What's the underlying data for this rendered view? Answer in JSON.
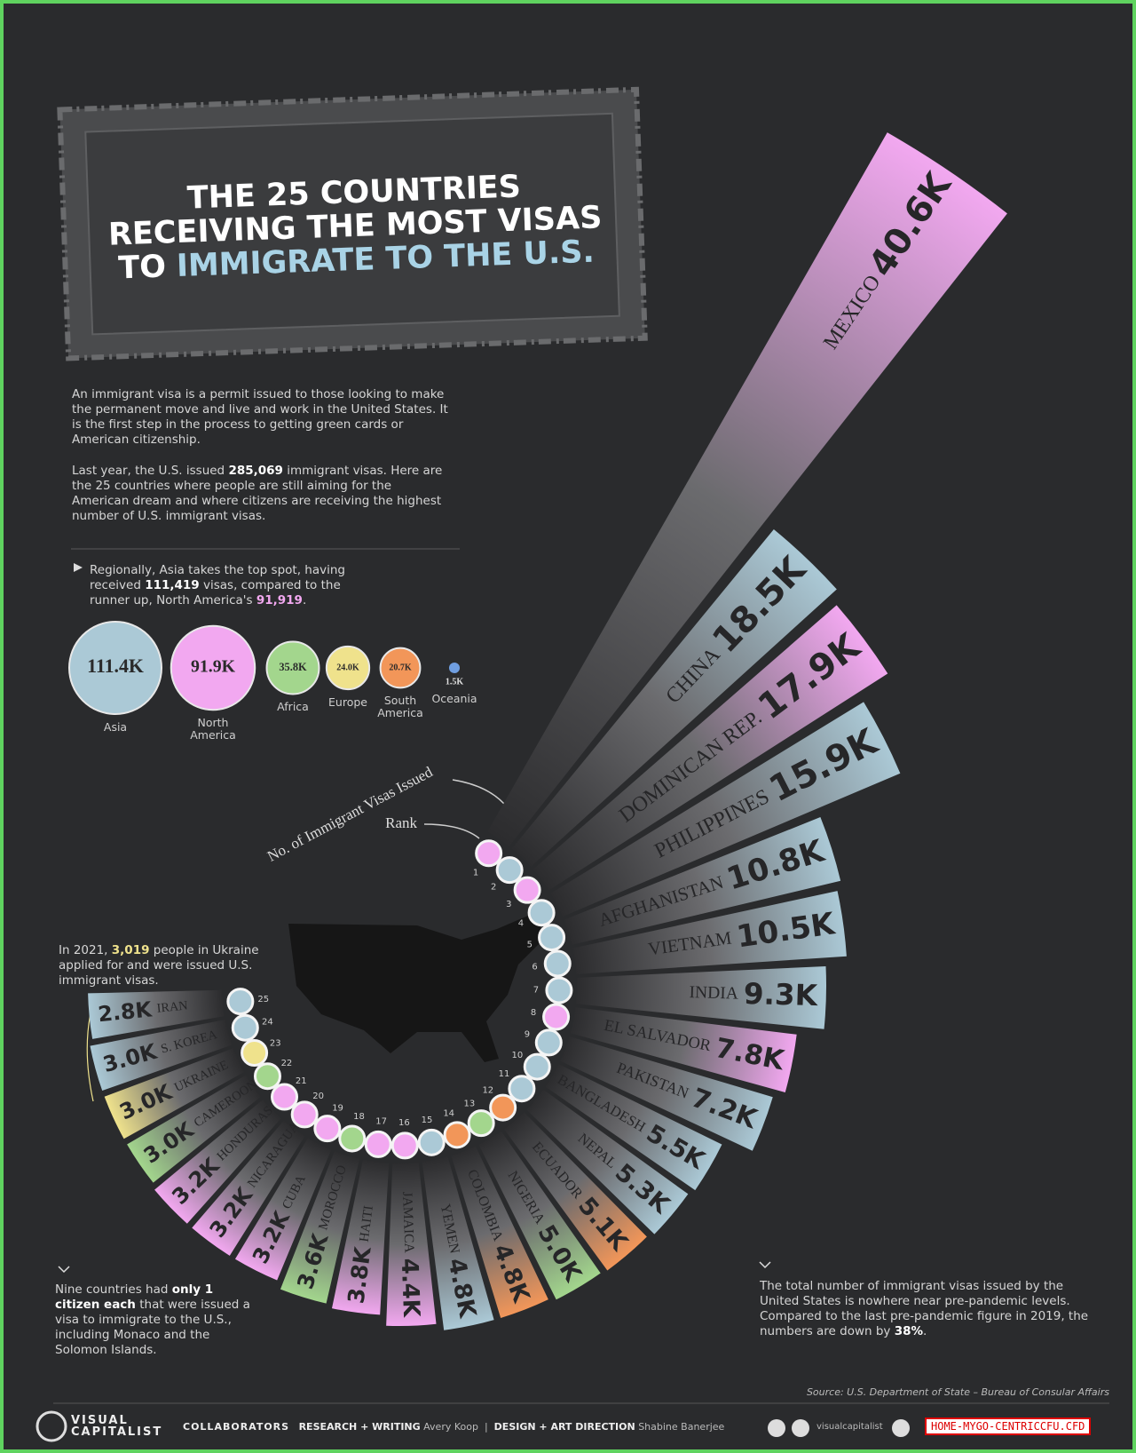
{
  "header": {
    "title_lines": [
      "THE 25 COUNTRIES",
      "RECEIVING THE MOST VISAS",
      "TO"
    ],
    "title_highlight": "IMMIGRATE TO THE U.S."
  },
  "intro": {
    "p1": "An immigrant visa is a permit issued to those looking to make the permanent move and live and work in the United States. It is the first step in the process to getting green cards or American citizenship.",
    "p2": [
      "Last year, the U.S. issued ",
      "285,069",
      " immigrant visas. Here are the 25 countries where people are still aiming for the American dream and where citizens are receiving the highest number of U.S. immigrant visas."
    ]
  },
  "regional_note": [
    "Regionally, Asia takes the top spot, having received ",
    "111,419",
    " visas, compared to the runner up, North America's ",
    "91,919",
    "."
  ],
  "annotations": {
    "ukraine": [
      "In 2021, ",
      "3,019",
      " people in Ukraine applied for and were issued U.S. immigrant visas."
    ],
    "nine_countries": [
      "Nine countries had ",
      "only 1 citizen each",
      " that were issued a visa to immigrate to the U.S., including Monaco and the Solomon Islands."
    ],
    "pandemic": [
      "The total number of immigrant visas issued by the United States is nowhere near pre-pandemic levels. Compared to the last pre-pandemic figure in 2019, the numbers are down by ",
      "38%",
      "."
    ]
  },
  "chart_data": [
    {
      "type": "radial-bar",
      "legend_value_label": "No. of Immigrant Visas Issued",
      "legend_rank_label": "Rank",
      "categories": [
        "MEXICO",
        "CHINA",
        "DOMINICAN REP.",
        "PHILIPPINES",
        "AFGHANISTAN",
        "VIETNAM",
        "INDIA",
        "EL SALVADOR",
        "PAKISTAN",
        "BANGLADESH",
        "NEPAL",
        "ECUADOR",
        "NIGERIA",
        "COLOMBIA",
        "YEMEN",
        "JAMAICA",
        "HAITI",
        "MOROCCO",
        "CUBA",
        "NICARAGUA",
        "HONDURAS",
        "CAMEROON",
        "UKRAINE",
        "S. KOREA",
        "IRAN"
      ],
      "values": [
        40600,
        18500,
        17900,
        15900,
        10800,
        10500,
        9300,
        7800,
        7200,
        5500,
        5300,
        5100,
        5000,
        4800,
        4800,
        4400,
        3800,
        3600,
        3200,
        3200,
        3200,
        3000,
        3000,
        3000,
        2800
      ],
      "value_labels": [
        "40.6K",
        "18.5K",
        "17.9K",
        "15.9K",
        "10.8K",
        "10.5K",
        "9.3K",
        "7.8K",
        "7.2K",
        "5.5K",
        "5.3K",
        "5.1K",
        "5.0K",
        "4.8K",
        "4.8K",
        "4.4K",
        "3.8K",
        "3.6K",
        "3.2K",
        "3.2K",
        "3.2K",
        "3.0K",
        "3.0K",
        "3.0K",
        "2.8K"
      ],
      "ranks": [
        1,
        2,
        3,
        4,
        5,
        6,
        7,
        8,
        9,
        10,
        11,
        12,
        13,
        14,
        15,
        16,
        17,
        18,
        19,
        20,
        21,
        22,
        23,
        24,
        25
      ],
      "colors": [
        "#f2a8f0",
        "#abc9d6",
        "#f2a8f0",
        "#abc9d6",
        "#abc9d6",
        "#abc9d6",
        "#abc9d6",
        "#f2a8f0",
        "#abc9d6",
        "#abc9d6",
        "#abc9d6",
        "#f29659",
        "#a3d68d",
        "#f29659",
        "#abc9d6",
        "#f2a8f0",
        "#f2a8f0",
        "#a3d68d",
        "#f2a8f0",
        "#f2a8f0",
        "#f2a8f0",
        "#a3d68d",
        "#efe28c",
        "#abc9d6",
        "#abc9d6"
      ]
    },
    {
      "type": "bubble",
      "categories": [
        "Asia",
        "North America",
        "Africa",
        "Europe",
        "South America",
        "Oceania"
      ],
      "values": [
        111400,
        91900,
        35800,
        24000,
        20700,
        1500
      ],
      "value_labels": [
        "111.4K",
        "91.9K",
        "35.8K",
        "24.0K",
        "20.7K",
        "1.5K"
      ],
      "colors": [
        "#abc9d6",
        "#f2a8f0",
        "#a3d68d",
        "#efe28c",
        "#f29659",
        "#6f9ee0"
      ]
    }
  ],
  "footer": {
    "source": "Source: U.S. Department of State – Bureau of Consular Affairs",
    "brand": [
      "VISUAL",
      "CAPITALIST"
    ],
    "collaborators": "COLLABORATORS",
    "research_label": "RESEARCH + WRITING",
    "research_name": "Avery Koop",
    "design_label": "DESIGN + ART DIRECTION",
    "design_name": "Shabine Banerjee",
    "handle": "visualcapitalist",
    "watermark": "HOME-MYGO-CENTRICCFU.CFD"
  }
}
